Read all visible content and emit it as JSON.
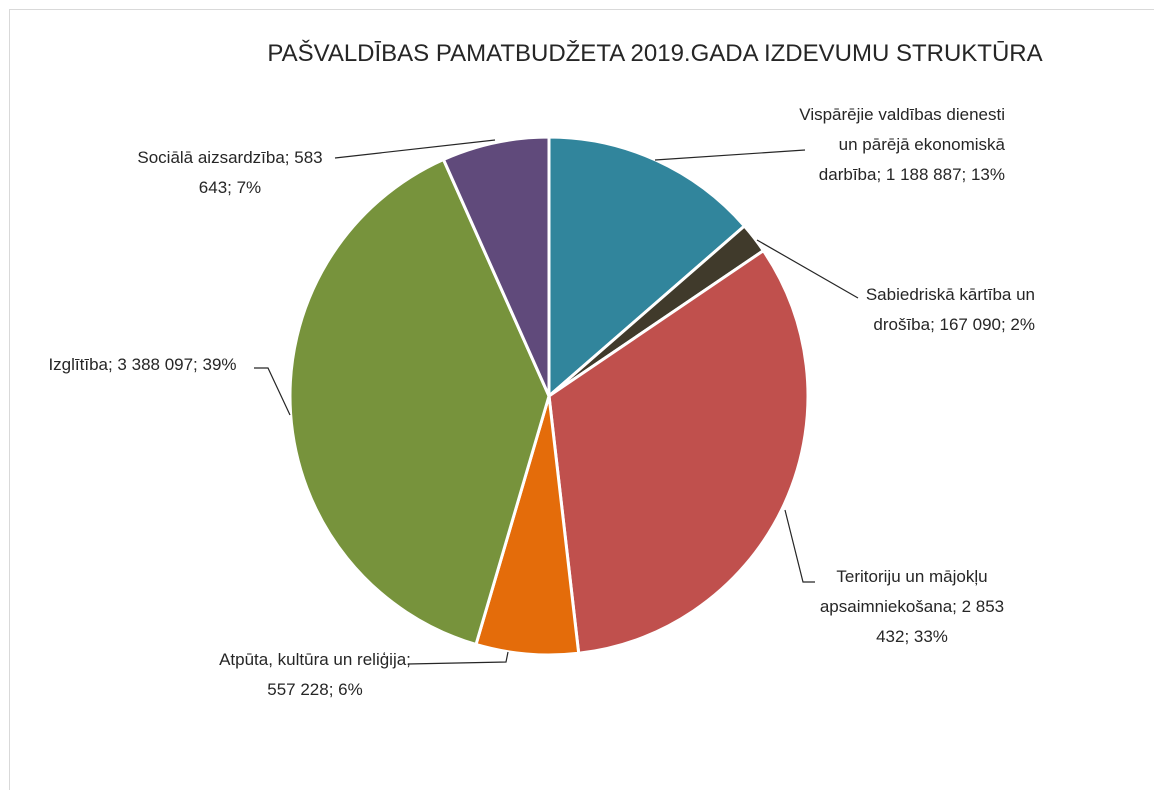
{
  "chart_data": {
    "type": "pie",
    "title": "PAŠVALDĪBAS PAMATBUDŽETA 2019.GADA IZDEVUMU STRUKTŪRA",
    "values": [
      1188887,
      167090,
      2853432,
      557228,
      3388097,
      583643
    ],
    "value_labels": [
      "Vispārējie valdības dienesti un pārējā ekonomiskā darbība; 1 188 887; 13%",
      "Sabiedriskā kārtība un drošība; 167 090; 2%",
      "Teritoriju un mājokļu apsaimniekošana; 2 853 432; 33%",
      "Atpūta, kultūra un reliģija; 557 228; 6%",
      "Izglītība; 3 388 097; 39%",
      "Sociālā aizsardzība; 583 643; 7%"
    ],
    "colors": [
      "#31859c",
      "#403a2b",
      "#c0504d",
      "#e46c0a",
      "#77933c",
      "#604a7b"
    ]
  }
}
